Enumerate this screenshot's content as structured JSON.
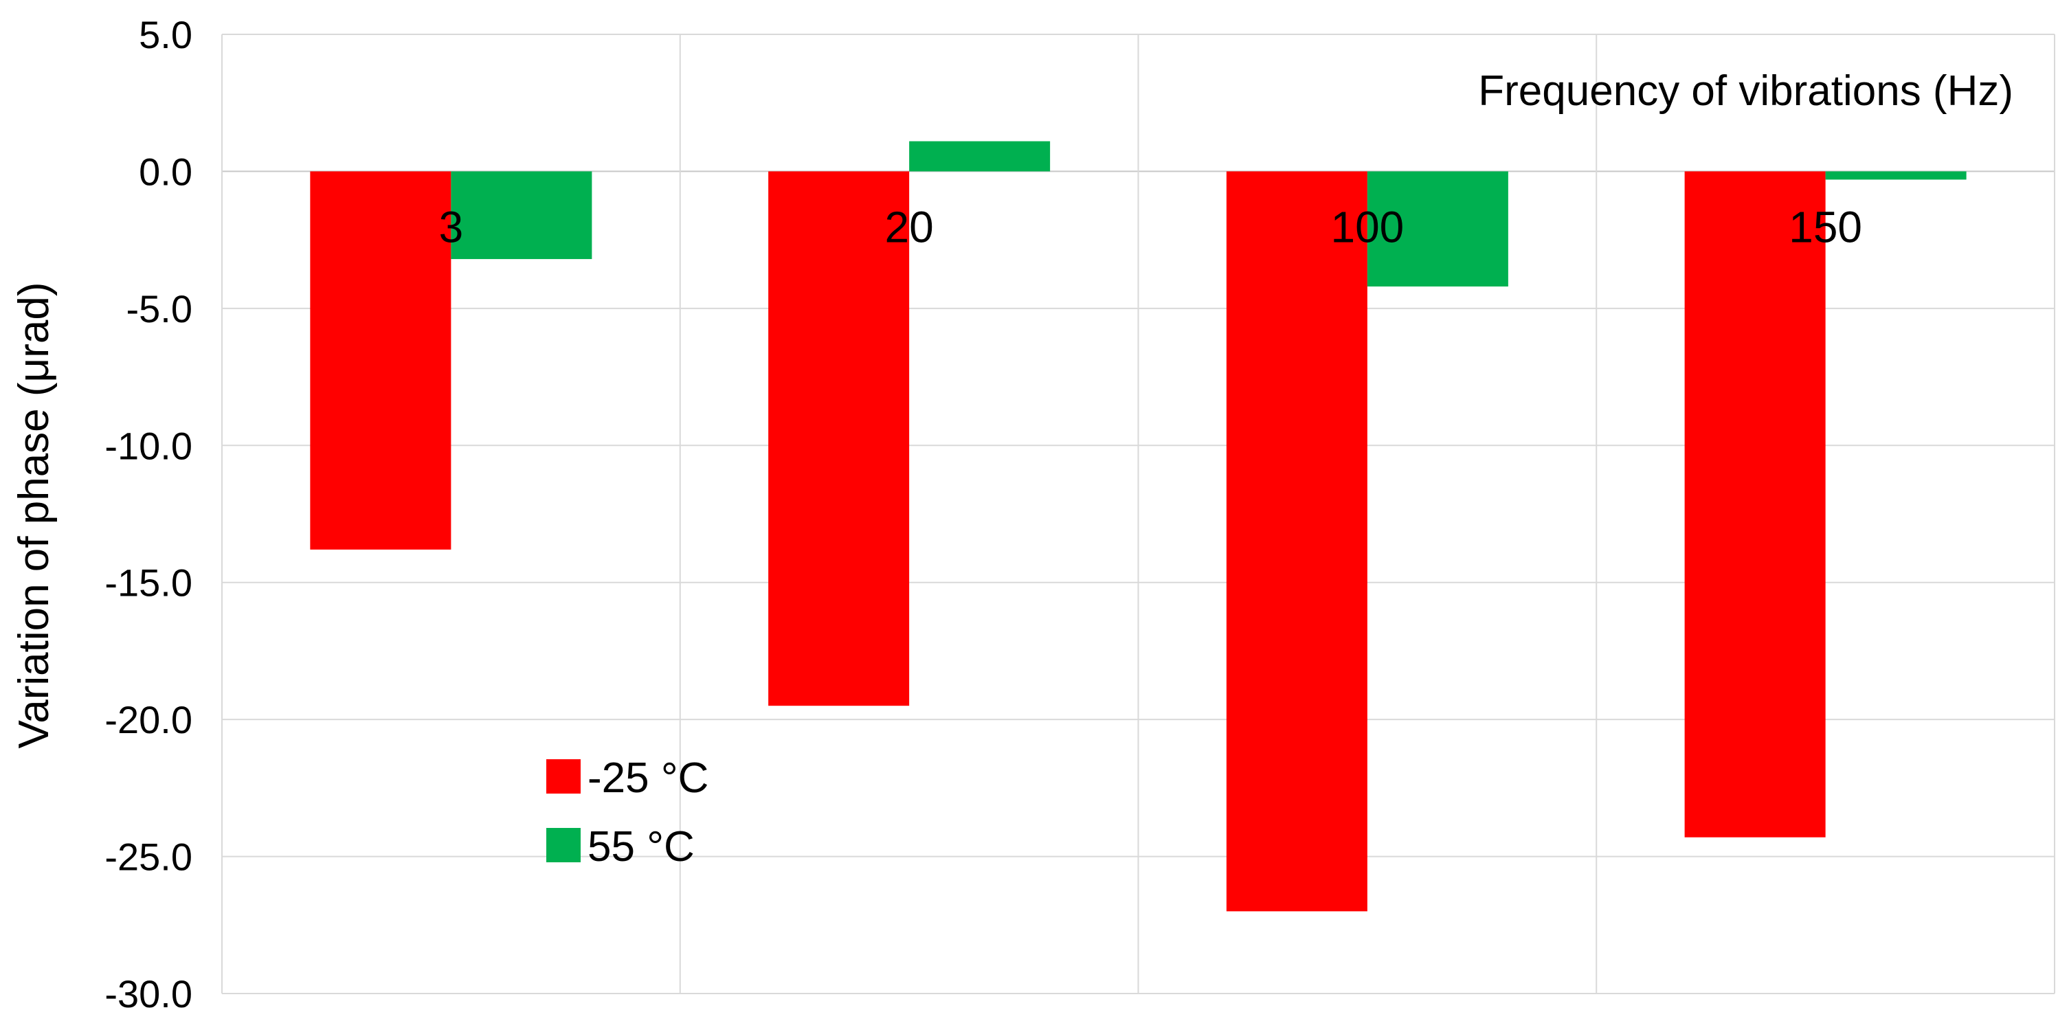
{
  "chart_data": {
    "type": "bar",
    "title": "",
    "xlabel": "Frequency of vibrations (Hz)",
    "ylabel": "Variation of phase (μrad)",
    "categories": [
      "3",
      "20",
      "100",
      "150"
    ],
    "series": [
      {
        "name": "-25 °C",
        "color": "#ff0000",
        "values": [
          -13.8,
          -19.5,
          -27.0,
          -24.3
        ]
      },
      {
        "name": "55 °C",
        "color": "#00b050",
        "values": [
          -3.2,
          1.1,
          -4.2,
          -0.3
        ]
      }
    ],
    "ylim": [
      -30,
      5
    ],
    "yticks": [
      "5.0",
      "0.0",
      "-5.0",
      "-10.0",
      "-15.0",
      "-20.0",
      "-25.0",
      "-30.0"
    ],
    "grid": true,
    "legend_position": "lower-left inside plot"
  }
}
